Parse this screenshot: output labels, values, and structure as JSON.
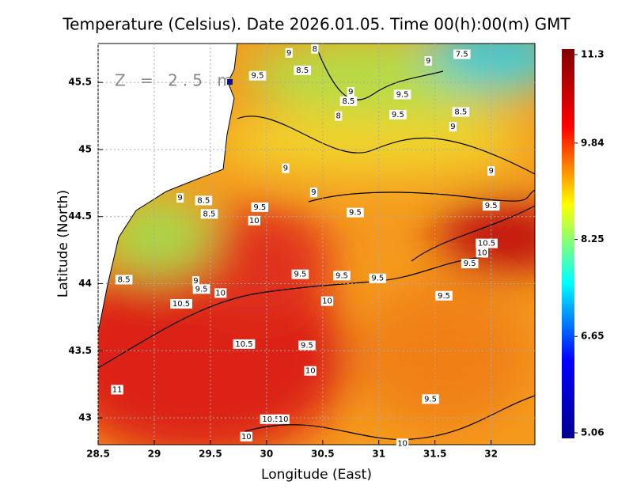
{
  "chart_data": {
    "type": "contour_map",
    "title": "Temperature (Celsius). Date 2026.01.05. Time 00(h):00(m) GMT",
    "annotation": "Z = 2.5 m",
    "x_label": "Longitude (East)",
    "y_label": "Latitude (North)",
    "xlim": [
      28.5,
      32.39
    ],
    "ylim": [
      42.8,
      45.79
    ],
    "xticks": [
      28.5,
      29,
      29.5,
      30,
      30.5,
      31,
      31.5,
      32
    ],
    "yticks": [
      43,
      43.5,
      44,
      44.5,
      45,
      45.5
    ],
    "grid": true,
    "colorbar": {
      "lim": [
        5.06,
        11.3
      ],
      "ticks": [
        11.3,
        9.84,
        8.25,
        6.65,
        5.06
      ],
      "colors": [
        "#00008f",
        "#0000ff",
        "#00ffff",
        "#ffff00",
        "#ff0000",
        "#800000"
      ]
    },
    "contour_labels": [
      {
        "value": 9,
        "lon": 30.2,
        "lat": 45.72
      },
      {
        "value": 8,
        "lon": 30.43,
        "lat": 45.75
      },
      {
        "value": 9.5,
        "lon": 29.92,
        "lat": 45.55
      },
      {
        "value": 8.5,
        "lon": 30.32,
        "lat": 45.59
      },
      {
        "value": 9,
        "lon": 30.75,
        "lat": 45.43
      },
      {
        "value": 8.5,
        "lon": 30.73,
        "lat": 45.36
      },
      {
        "value": 8,
        "lon": 30.64,
        "lat": 45.25
      },
      {
        "value": 9,
        "lon": 31.44,
        "lat": 45.66
      },
      {
        "value": 7.5,
        "lon": 31.74,
        "lat": 45.71
      },
      {
        "value": 9.5,
        "lon": 31.21,
        "lat": 45.41
      },
      {
        "value": 9.5,
        "lon": 31.17,
        "lat": 45.26
      },
      {
        "value": 8.5,
        "lon": 31.73,
        "lat": 45.28
      },
      {
        "value": 9,
        "lon": 31.66,
        "lat": 45.17
      },
      {
        "value": 9,
        "lon": 30.17,
        "lat": 44.86
      },
      {
        "value": 9,
        "lon": 32.0,
        "lat": 44.84
      },
      {
        "value": 9,
        "lon": 30.42,
        "lat": 44.68
      },
      {
        "value": 9,
        "lon": 29.23,
        "lat": 44.64
      },
      {
        "value": 8.5,
        "lon": 29.44,
        "lat": 44.62
      },
      {
        "value": 9.5,
        "lon": 29.94,
        "lat": 44.57
      },
      {
        "value": 8.5,
        "lon": 29.49,
        "lat": 44.52
      },
      {
        "value": 10,
        "lon": 29.89,
        "lat": 44.47
      },
      {
        "value": 9.5,
        "lon": 30.79,
        "lat": 44.53
      },
      {
        "value": 9.5,
        "lon": 32.0,
        "lat": 44.58
      },
      {
        "value": 10.5,
        "lon": 31.96,
        "lat": 44.3
      },
      {
        "value": 10,
        "lon": 31.92,
        "lat": 44.23
      },
      {
        "value": 9.5,
        "lon": 31.81,
        "lat": 44.15
      },
      {
        "value": 8.5,
        "lon": 28.73,
        "lat": 44.03
      },
      {
        "value": 9,
        "lon": 29.37,
        "lat": 44.02
      },
      {
        "value": 9.5,
        "lon": 29.42,
        "lat": 43.96
      },
      {
        "value": 10,
        "lon": 29.59,
        "lat": 43.93
      },
      {
        "value": 9.5,
        "lon": 30.3,
        "lat": 44.07
      },
      {
        "value": 9.5,
        "lon": 30.67,
        "lat": 44.06
      },
      {
        "value": 9.5,
        "lon": 30.99,
        "lat": 44.04
      },
      {
        "value": 9.5,
        "lon": 31.58,
        "lat": 43.91
      },
      {
        "value": 10.5,
        "lon": 29.24,
        "lat": 43.85
      },
      {
        "value": 10,
        "lon": 30.54,
        "lat": 43.87
      },
      {
        "value": 10.5,
        "lon": 29.8,
        "lat": 43.55
      },
      {
        "value": 9.5,
        "lon": 30.36,
        "lat": 43.54
      },
      {
        "value": 10,
        "lon": 30.39,
        "lat": 43.35
      },
      {
        "value": 11,
        "lon": 28.67,
        "lat": 43.21
      },
      {
        "value": 9.5,
        "lon": 31.46,
        "lat": 43.14
      },
      {
        "value": 10.5,
        "lon": 30.04,
        "lat": 42.99
      },
      {
        "value": 10,
        "lon": 30.15,
        "lat": 42.99
      },
      {
        "value": 10,
        "lon": 29.82,
        "lat": 42.86
      },
      {
        "value": 10,
        "lon": 31.21,
        "lat": 42.81
      }
    ]
  }
}
